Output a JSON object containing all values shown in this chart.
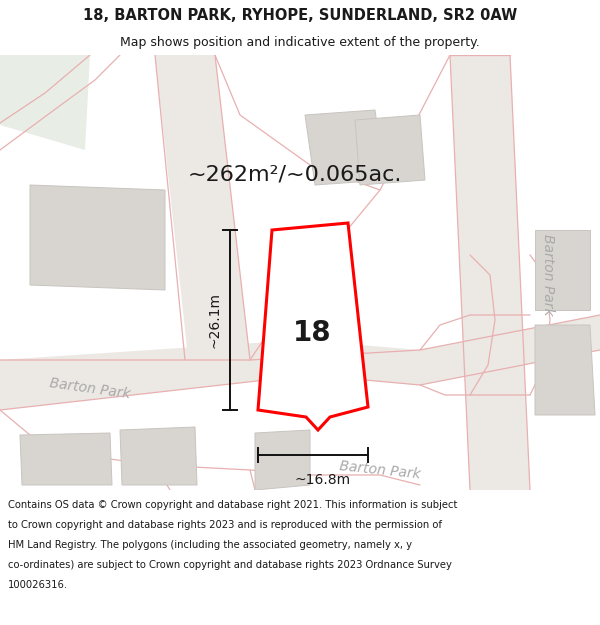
{
  "title_line1": "18, BARTON PARK, RYHOPE, SUNDERLAND, SR2 0AW",
  "title_line2": "Map shows position and indicative extent of the property.",
  "area_text": "~262m²/~0.065ac.",
  "label_number": "18",
  "dim_height": "~26.1m",
  "dim_width": "~16.8m",
  "footer_text": "Contains OS data © Crown copyright and database right 2021. This information is subject to Crown copyright and database rights 2023 and is reproduced with the permission of HM Land Registry. The polygons (including the associated geometry, namely x, y co-ordinates) are subject to Crown copyright and database rights 2023 Ordnance Survey 100026316.",
  "map_bg": "#f7f5f2",
  "road_line_color": "#e8b0b0",
  "building_fill": "#d8d5d0",
  "building_edge": "#c8c4c0",
  "road_fill_color": "#e8e4e0",
  "green_area": "#e8ede8",
  "plot_color": "#ff0000",
  "plot_fill": "#ffffff",
  "text_color": "#1a1a1a",
  "road_label_color": "#aaaaaa",
  "dim_line_color": "#111111",
  "footer_bg": "#ffffff",
  "title_bg": "#ffffff",
  "title_fontsize": 10.5,
  "subtitle_fontsize": 9,
  "area_fontsize": 16,
  "label_fontsize": 20,
  "dim_fontsize": 10,
  "road_label_fontsize": 10,
  "footer_fontsize": 7.2
}
